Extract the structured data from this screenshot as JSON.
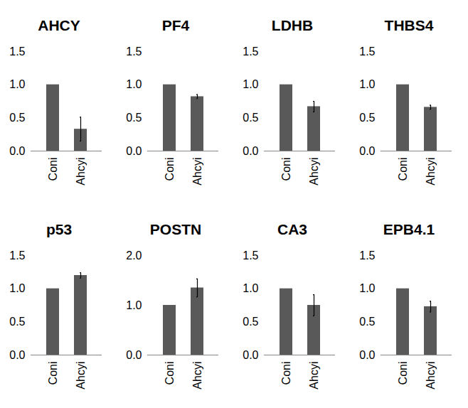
{
  "chart_data": [
    {
      "type": "bar",
      "title": "AHCY",
      "categories": [
        "Coni",
        "Ahcyi"
      ],
      "values": [
        1,
        0.33
      ],
      "errors": [
        null,
        0.18
      ],
      "color": "#595959",
      "ylim": [
        0,
        1.5
      ],
      "yticks": [
        0,
        0.5,
        1,
        1.5
      ]
    },
    {
      "type": "bar",
      "title": "PF4",
      "categories": [
        "Coni",
        "Ahcyi"
      ],
      "values": [
        1,
        0.82
      ],
      "errors": [
        null,
        0.03
      ],
      "color": "#595959",
      "ylim": [
        0,
        1.5
      ],
      "yticks": [
        0,
        0.5,
        1,
        1.5
      ]
    },
    {
      "type": "bar",
      "title": "LDHB",
      "categories": [
        "Coni",
        "Ahcyi"
      ],
      "values": [
        1,
        0.67
      ],
      "errors": [
        null,
        0.08
      ],
      "color": "#595959",
      "ylim": [
        0,
        1.5
      ],
      "yticks": [
        0,
        0.5,
        1,
        1.5
      ]
    },
    {
      "type": "bar",
      "title": "THBS4",
      "categories": [
        "Coni",
        "Ahcyi"
      ],
      "values": [
        1,
        0.66
      ],
      "errors": [
        null,
        0.03
      ],
      "color": "#595959",
      "ylim": [
        0,
        1.5
      ],
      "yticks": [
        0,
        0.5,
        1,
        1.5
      ]
    },
    {
      "type": "bar",
      "title": "p53",
      "categories": [
        "Coni",
        "Ahcyi"
      ],
      "values": [
        1,
        1.2
      ],
      "errors": [
        null,
        0.04
      ],
      "color": "#595959",
      "ylim": [
        0,
        1.5
      ],
      "yticks": [
        0,
        0.5,
        1,
        1.5
      ]
    },
    {
      "type": "bar",
      "title": "POSTN",
      "categories": [
        "Coni",
        "Ahcyi"
      ],
      "values": [
        1,
        1.35
      ],
      "errors": [
        null,
        0.18
      ],
      "color": "#595959",
      "ylim": [
        0,
        2
      ],
      "yticks": [
        0,
        1,
        2
      ]
    },
    {
      "type": "bar",
      "title": "CA3",
      "categories": [
        "Coni",
        "Ahcyi"
      ],
      "values": [
        1,
        0.75
      ],
      "errors": [
        null,
        0.16
      ],
      "color": "#595959",
      "ylim": [
        0,
        1.5
      ],
      "yticks": [
        0,
        0.5,
        1,
        1.5
      ]
    },
    {
      "type": "bar",
      "title": "EPB4.1",
      "categories": [
        "Coni",
        "Ahcyi"
      ],
      "values": [
        1,
        0.73
      ],
      "errors": [
        null,
        0.08
      ],
      "color": "#595959",
      "ylim": [
        0,
        1.5
      ],
      "yticks": [
        0,
        0.5,
        1,
        1.5
      ]
    }
  ]
}
